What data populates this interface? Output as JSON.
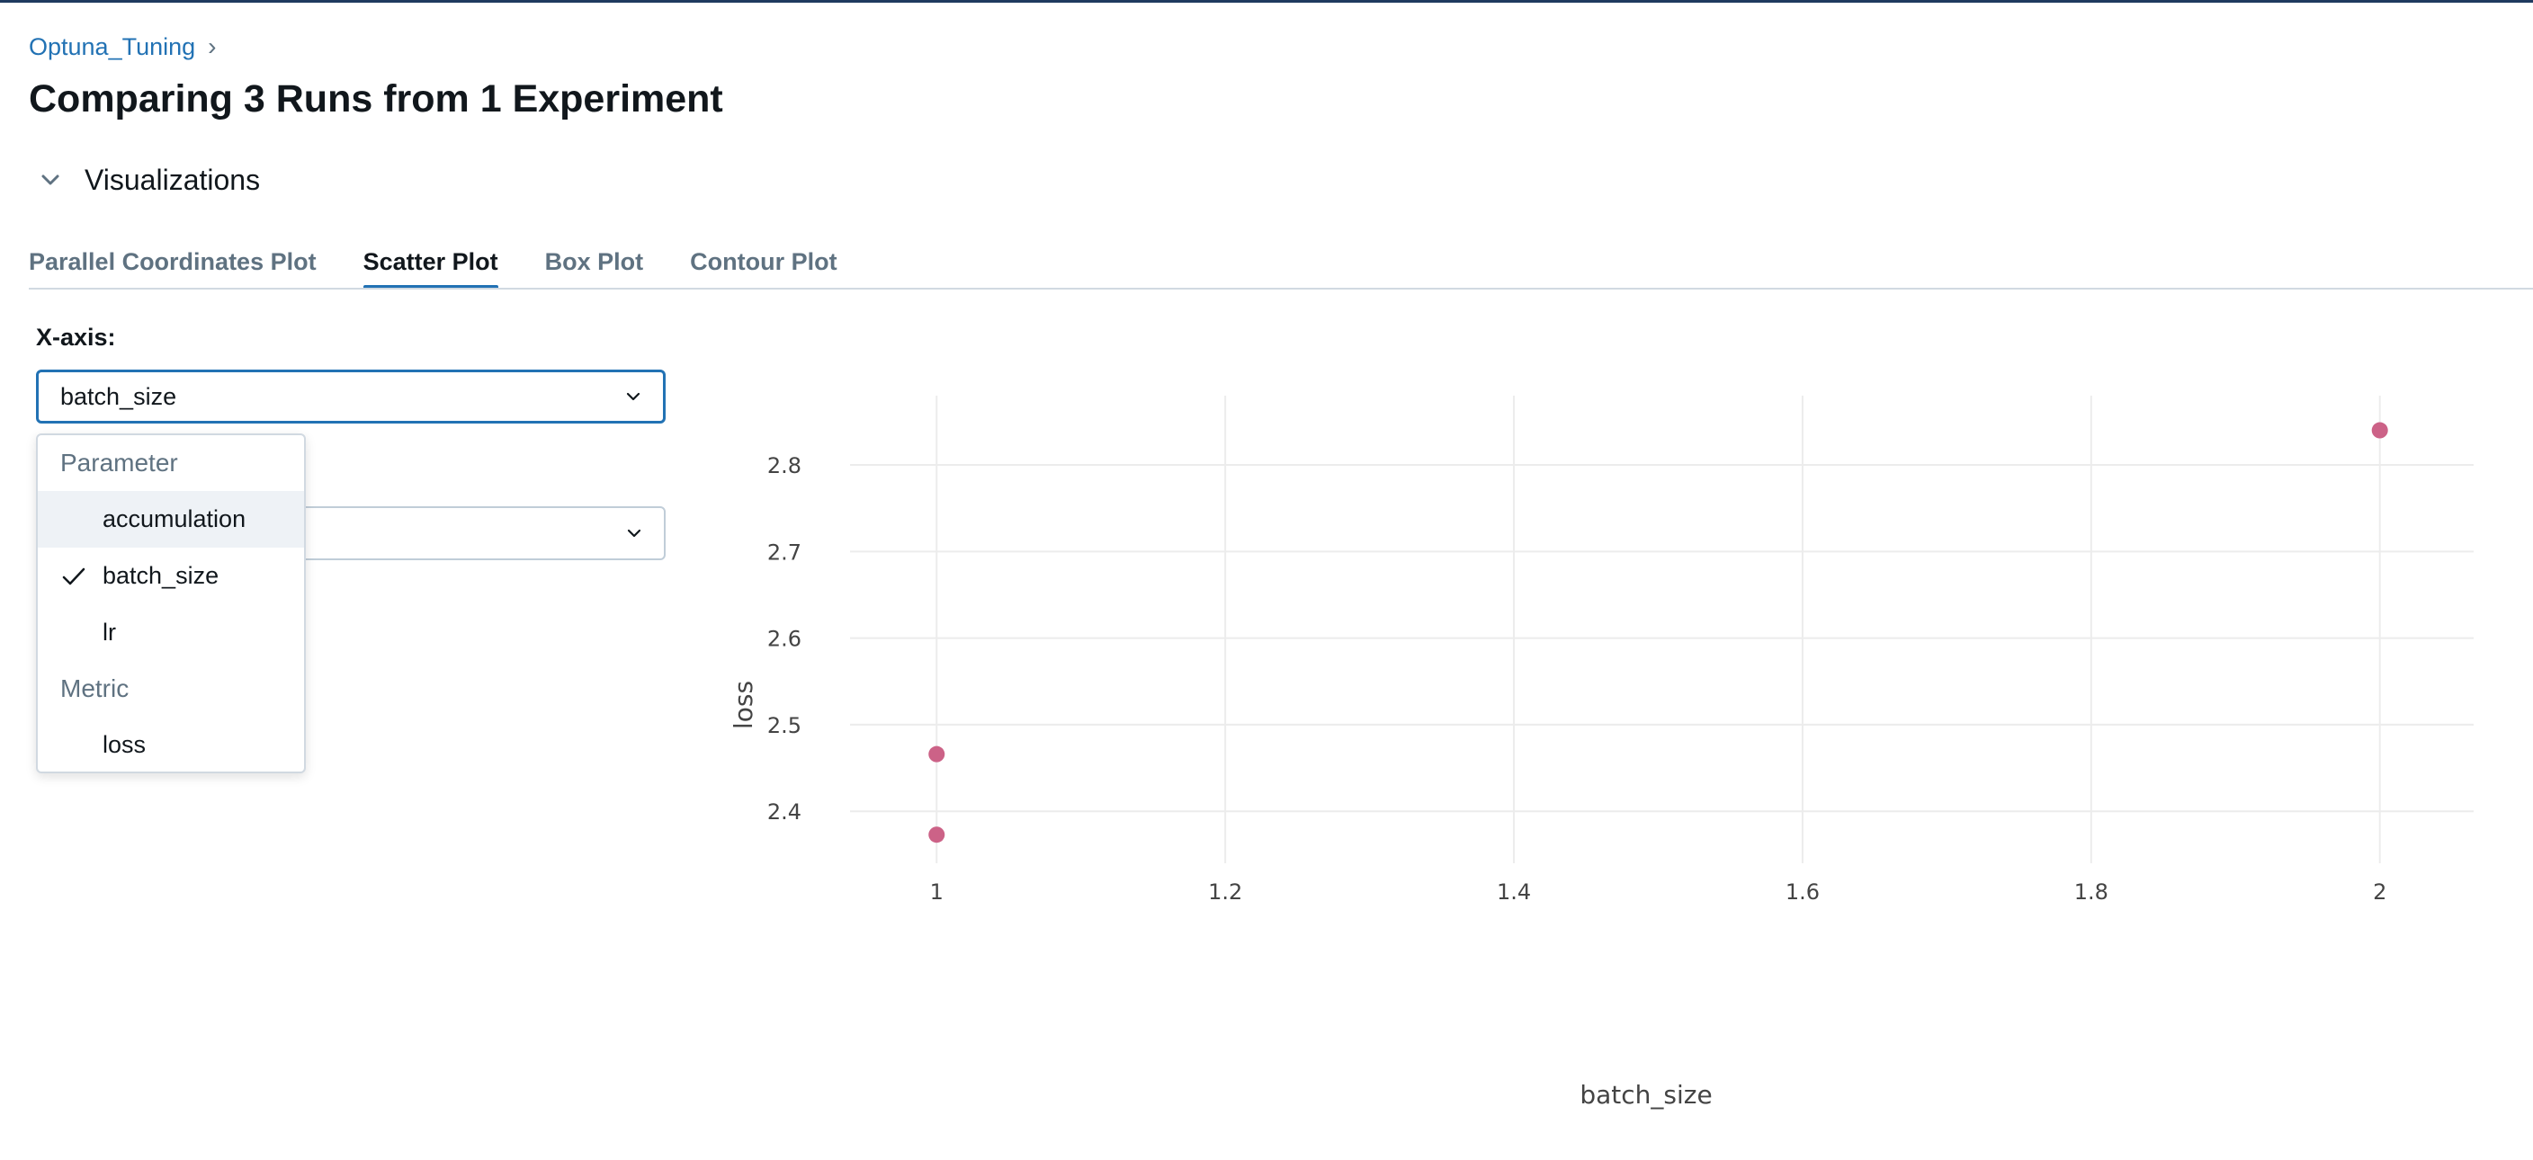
{
  "breadcrumb": {
    "experiment": "Optuna_Tuning",
    "separator": "›"
  },
  "page": {
    "title": "Comparing 3 Runs from 1 Experiment"
  },
  "visualizations": {
    "label": "Visualizations",
    "expanded": true
  },
  "tabs": [
    {
      "label": "Parallel Coordinates Plot",
      "active": false
    },
    {
      "label": "Scatter Plot",
      "active": true
    },
    {
      "label": "Box Plot",
      "active": false
    },
    {
      "label": "Contour Plot",
      "active": false
    }
  ],
  "controls": {
    "x_axis_label": "X-axis:",
    "x_axis_value": "batch_size",
    "y_axis_value": ""
  },
  "dropdown": {
    "groups": [
      {
        "label": "Parameter",
        "items": [
          {
            "label": "accumulation",
            "selected": false,
            "highlighted": true
          },
          {
            "label": "batch_size",
            "selected": true,
            "highlighted": false
          },
          {
            "label": "lr",
            "selected": false,
            "highlighted": false
          }
        ]
      },
      {
        "label": "Metric",
        "items": [
          {
            "label": "loss",
            "selected": false,
            "highlighted": false
          }
        ]
      }
    ]
  },
  "colors": {
    "accent": "#2272b4",
    "point": "#cc6287",
    "grid": "#ececec"
  },
  "chart_data": {
    "type": "scatter",
    "xlabel": "batch_size",
    "ylabel": "loss",
    "x_ticks": [
      "1",
      "1.2",
      "1.4",
      "1.6",
      "1.8",
      "2"
    ],
    "y_ticks": [
      "2.4",
      "2.5",
      "2.6",
      "2.7",
      "2.8"
    ],
    "xlim": [
      0.94,
      2.065
    ],
    "ylim": [
      2.34,
      2.88
    ],
    "points": [
      {
        "x": 1,
        "y": 2.373
      },
      {
        "x": 1,
        "y": 2.466
      },
      {
        "x": 2,
        "y": 2.84
      }
    ]
  }
}
